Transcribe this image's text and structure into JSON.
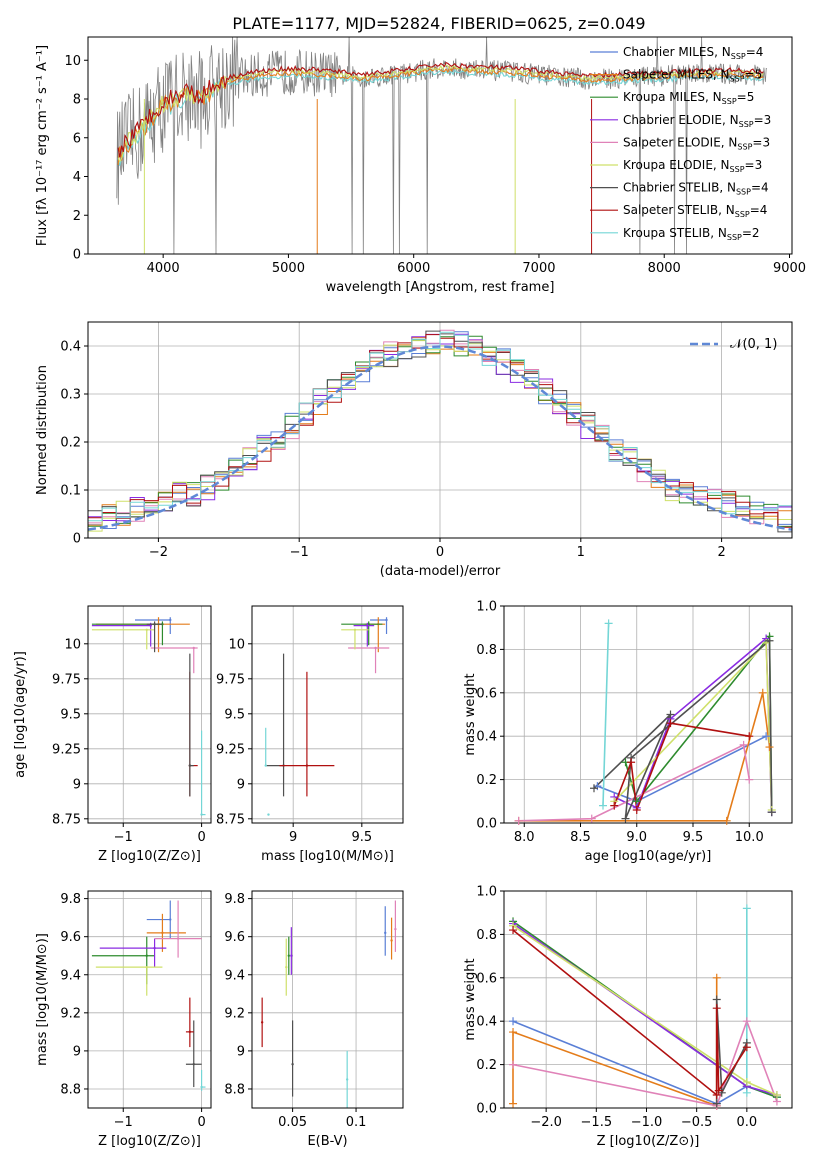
{
  "title": "PLATE=1177, MJD=52824, FIBERID=0625, z=0.049",
  "colors": {
    "Chabrier MILES": "#5a7fd6",
    "Salpeter MILES": "#e47c1a",
    "Kroupa MILES": "#2e8b2e",
    "Chabrier ELODIE": "#8a2be2",
    "Salpeter ELODIE": "#e082b8",
    "Kroupa ELODIE": "#cfe06a",
    "Chabrier STELIB": "#505050",
    "Salpeter STELIB": "#b01010",
    "Kroupa STELIB": "#74d6d6",
    "spectrum": "#808080",
    "gauss": "#5f88d6"
  },
  "chart_data": [
    {
      "id": "spectrum",
      "type": "line",
      "xlabel": "wavelength [Angstrom, rest frame]",
      "ylabel": "Flux [fλ 10⁻¹⁷ erg cm⁻² s⁻¹ A⁻¹]",
      "xlim": [
        3400,
        9020
      ],
      "ylim": [
        0,
        11.2
      ],
      "xticks": [
        4000,
        5000,
        6000,
        7000,
        8000,
        9000
      ],
      "yticks": [
        0,
        2,
        4,
        6,
        8,
        10
      ],
      "continuum": {
        "x": [
          3600,
          3700,
          3800,
          3900,
          4000,
          4100,
          4200,
          4300,
          4400,
          4500,
          4700,
          5000,
          5300,
          5600,
          5900,
          6200,
          6500,
          6800,
          7100,
          7400,
          7700,
          8000,
          8300,
          8600,
          8800
        ],
        "y": [
          4.7,
          5.6,
          6.2,
          7.0,
          7.7,
          8.0,
          8.3,
          8.0,
          8.5,
          8.9,
          9.2,
          9.4,
          9.3,
          9.1,
          9.3,
          9.6,
          9.5,
          9.4,
          9.2,
          9.0,
          9.1,
          9.2,
          9.3,
          9.3,
          9.2
        ]
      },
      "legend": [
        {
          "label": "Chabrier MILES, N",
          "n": "4"
        },
        {
          "label": "Salpeter MILES, N",
          "n": "5"
        },
        {
          "label": "Kroupa MILES, N",
          "n": "5"
        },
        {
          "label": "Chabrier ELODIE, N",
          "n": "3"
        },
        {
          "label": "Salpeter ELODIE, N",
          "n": "3"
        },
        {
          "label": "Kroupa ELODIE, N",
          "n": "3"
        },
        {
          "label": "Chabrier STELIB, N",
          "n": "4"
        },
        {
          "label": "Salpeter STELIB, N",
          "n": "4"
        },
        {
          "label": "Kroupa STELIB, N",
          "n": "2"
        }
      ],
      "legend_sub": "SSP",
      "legend_placement": "right"
    },
    {
      "id": "residuals",
      "type": "line",
      "xlabel": "(data-model)/error",
      "ylabel": "Normed distribution",
      "xlim": [
        -2.5,
        2.5
      ],
      "ylim": [
        0,
        0.45
      ],
      "xticks": [
        -2,
        -1,
        0,
        1,
        2
      ],
      "yticks": [
        0.0,
        0.1,
        0.2,
        0.3,
        0.4
      ],
      "grid": true,
      "bin_width": 0.1,
      "legend": "𝒩(0, 1)",
      "legend_placement": "top-right"
    },
    {
      "id": "z_age",
      "type": "scatter",
      "xlabel": "Z [log10(Z/Z⊙)]",
      "ylabel": "age  [log10(age/yr)]",
      "xlim": [
        -1.45,
        0.12
      ],
      "ylim": [
        8.72,
        10.27
      ],
      "xticks": [
        -1,
        0
      ],
      "yticks": [
        8.75,
        9.0,
        9.25,
        9.5,
        9.75,
        10.0
      ],
      "grid": true,
      "points": [
        {
          "s": "Chabrier MILES",
          "x": -0.4,
          "y": 10.17,
          "xe": [
            0.45,
            0
          ],
          "ye": [
            0.1,
            0.02
          ]
        },
        {
          "s": "Salpeter MILES",
          "x": -0.55,
          "y": 10.14,
          "xe": [
            0.8,
            0.4
          ],
          "ye": [
            0.2,
            0.05
          ]
        },
        {
          "s": "Kroupa MILES",
          "x": -0.5,
          "y": 10.14,
          "xe": [
            0.9,
            0
          ],
          "ye": [
            0.15,
            0.02
          ]
        },
        {
          "s": "Chabrier ELODIE",
          "x": -0.65,
          "y": 10.13,
          "xe": [
            0.75,
            0
          ],
          "ye": [
            0.15,
            0.02
          ]
        },
        {
          "s": "Salpeter ELODIE",
          "x": -0.1,
          "y": 9.97,
          "xe": [
            0.55,
            0.05
          ],
          "ye": [
            0.18,
            0.0
          ]
        },
        {
          "s": "Kroupa ELODIE",
          "x": -0.7,
          "y": 10.1,
          "xe": [
            0.7,
            0.1
          ],
          "ye": [
            0.14,
            0.0
          ]
        },
        {
          "s": "Chabrier STELIB",
          "x": -0.6,
          "y": 10.14,
          "xe": [
            0.1,
            0.1
          ],
          "ye": [
            0.2,
            0.02
          ]
        },
        {
          "s": "Salpeter STELIB",
          "x": -0.15,
          "y": 9.13,
          "xe": [
            0,
            0.1
          ],
          "ye": [
            0.22,
            0.67
          ]
        },
        {
          "s": "Chabrier STELIB",
          "x": -0.15,
          "y": 9.13,
          "xe": [
            0,
            0.05
          ],
          "ye": [
            0.22,
            0.8
          ]
        },
        {
          "s": "Kroupa STELIB",
          "x": 0.0,
          "y": 8.78,
          "xe": [
            0,
            0.05
          ],
          "ye": [
            0.0,
            0.6
          ]
        }
      ]
    },
    {
      "id": "mass_age",
      "type": "scatter",
      "xlabel": "mass [log10(M/M⊙)]",
      "ylabel": "",
      "xlim": [
        8.7,
        9.8
      ],
      "ylim": [
        8.72,
        10.27
      ],
      "xticks": [
        9.0,
        9.5
      ],
      "yticks": [
        8.75,
        9.0,
        9.25,
        9.5,
        9.75,
        10.0
      ],
      "grid": true,
      "points": [
        {
          "s": "Chabrier MILES",
          "x": 9.68,
          "y": 10.17,
          "xe": [
            0.12,
            0.0
          ],
          "ye": [
            0.1,
            0.02
          ]
        },
        {
          "s": "Salpeter MILES",
          "x": 9.62,
          "y": 10.14,
          "xe": [
            0.1,
            0.05
          ],
          "ye": [
            0.2,
            0.05
          ]
        },
        {
          "s": "Kroupa MILES",
          "x": 9.55,
          "y": 10.14,
          "xe": [
            0.2,
            0.1
          ],
          "ye": [
            0.15,
            0.02
          ]
        },
        {
          "s": "Chabrier ELODIE",
          "x": 9.54,
          "y": 10.13,
          "xe": [
            0.1,
            0.05
          ],
          "ye": [
            0.15,
            0.02
          ]
        },
        {
          "s": "Salpeter ELODIE",
          "x": 9.6,
          "y": 9.97,
          "xe": [
            0.2,
            0.1
          ],
          "ye": [
            0.18,
            0.0
          ]
        },
        {
          "s": "Kroupa ELODIE",
          "x": 9.45,
          "y": 10.1,
          "xe": [
            0.1,
            0.1
          ],
          "ye": [
            0.14,
            0.0
          ]
        },
        {
          "s": "Chabrier STELIB",
          "x": 8.93,
          "y": 9.13,
          "xe": [
            0.13,
            0.0
          ],
          "ye": [
            0.22,
            0.8
          ]
        },
        {
          "s": "Salpeter STELIB",
          "x": 9.1,
          "y": 9.13,
          "xe": [
            0.2,
            0.2
          ],
          "ye": [
            0.22,
            0.67
          ]
        },
        {
          "s": "Kroupa STELIB",
          "x": 8.82,
          "y": 8.78,
          "xe": [
            0.0,
            0.0
          ],
          "ye": [
            0.0,
            0.0
          ]
        },
        {
          "s": "Kroupa STELIB",
          "x": 8.8,
          "y": 9.13,
          "xe": [
            0.0,
            0.0
          ],
          "ye": [
            0.0,
            0.27
          ]
        }
      ]
    },
    {
      "id": "age_weight",
      "type": "line",
      "xlabel": "age  [log10(age/yr)]",
      "ylabel": "mass weight",
      "xlim": [
        7.82,
        10.38
      ],
      "ylim": [
        0,
        1.0
      ],
      "xticks": [
        8.0,
        8.5,
        9.0,
        9.5,
        10.0
      ],
      "yticks": [
        0.0,
        0.2,
        0.4,
        0.6,
        0.8,
        1.0
      ],
      "grid": true,
      "series": [
        {
          "s": "Chabrier MILES",
          "x": [
            8.65,
            9.0,
            10.15
          ],
          "y": [
            0.17,
            0.1,
            0.4
          ]
        },
        {
          "s": "Salpeter MILES",
          "x": [
            7.95,
            9.8,
            10.12,
            10.18
          ],
          "y": [
            0.01,
            0.01,
            0.6,
            0.35
          ]
        },
        {
          "s": "Kroupa MILES",
          "x": [
            8.9,
            9.0,
            10.18,
            10.2
          ],
          "y": [
            0.28,
            0.1,
            0.86,
            0.05
          ]
        },
        {
          "s": "Chabrier ELODIE",
          "x": [
            8.8,
            9.0,
            9.3,
            10.15,
            10.2
          ],
          "y": [
            0.12,
            0.07,
            0.48,
            0.85,
            0.05
          ]
        },
        {
          "s": "Salpeter ELODIE",
          "x": [
            7.95,
            8.6,
            9.95,
            10.0
          ],
          "y": [
            0.01,
            0.02,
            0.36,
            0.2
          ]
        },
        {
          "s": "Kroupa ELODIE",
          "x": [
            8.8,
            10.15,
            10.2
          ],
          "y": [
            0.1,
            0.83,
            0.06
          ]
        },
        {
          "s": "Chabrier STELIB",
          "x": [
            8.62,
            9.3,
            8.9,
            8.95,
            10.18,
            10.2
          ],
          "y": [
            0.16,
            0.5,
            0.02,
            0.3,
            0.84,
            0.05
          ]
        },
        {
          "s": "Salpeter STELIB",
          "x": [
            8.8,
            8.95,
            9.0,
            9.3,
            10.0
          ],
          "y": [
            0.08,
            0.28,
            0.06,
            0.46,
            0.4
          ]
        },
        {
          "s": "Kroupa STELIB",
          "x": [
            8.7,
            8.75
          ],
          "y": [
            0.08,
            0.92
          ]
        }
      ]
    },
    {
      "id": "z_mass",
      "type": "scatter",
      "xlabel": "Z [log10(Z/Z⊙)]",
      "ylabel": "mass [log10(M/M⊙)]",
      "xlim": [
        -1.45,
        0.12
      ],
      "ylim": [
        8.7,
        9.84
      ],
      "xticks": [
        -1,
        0
      ],
      "yticks": [
        8.8,
        9.0,
        9.2,
        9.4,
        9.6,
        9.8
      ],
      "grid": true,
      "points": [
        {
          "s": "Chabrier MILES",
          "x": -0.4,
          "y": 9.69,
          "xe": [
            0.3,
            0.0
          ],
          "ye": [
            0.1,
            0.1
          ]
        },
        {
          "s": "Salpeter MILES",
          "x": -0.5,
          "y": 9.62,
          "xe": [
            0.2,
            0.3
          ],
          "ye": [
            0.1,
            0.1
          ]
        },
        {
          "s": "Kroupa MILES",
          "x": -0.7,
          "y": 9.5,
          "xe": [
            0.7,
            0.1
          ],
          "ye": [
            0.15,
            0.1
          ]
        },
        {
          "s": "Chabrier ELODIE",
          "x": -0.6,
          "y": 9.54,
          "xe": [
            0.7,
            0.15
          ],
          "ye": [
            0.1,
            0.05
          ]
        },
        {
          "s": "Salpeter ELODIE",
          "x": -0.3,
          "y": 9.59,
          "xe": [
            0.3,
            0.3
          ],
          "ye": [
            0.1,
            0.2
          ]
        },
        {
          "s": "Kroupa ELODIE",
          "x": -0.7,
          "y": 9.44,
          "xe": [
            0.65,
            0.2
          ],
          "ye": [
            0.15,
            0.0
          ]
        },
        {
          "s": "Chabrier STELIB",
          "x": -0.1,
          "y": 8.93,
          "xe": [
            0.1,
            0.1
          ],
          "ye": [
            0.12,
            0.23
          ]
        },
        {
          "s": "Salpeter STELIB",
          "x": -0.15,
          "y": 9.1,
          "xe": [
            0.05,
            0.05
          ],
          "ye": [
            0.08,
            0.18
          ]
        },
        {
          "s": "Kroupa STELIB",
          "x": 0.0,
          "y": 8.81,
          "xe": [
            0.0,
            0.05
          ],
          "ye": [
            0.02,
            0.09
          ]
        }
      ]
    },
    {
      "id": "ebv_mass",
      "type": "scatter",
      "xlabel": "E(B-V)",
      "ylabel": "",
      "xlim": [
        0.018,
        0.137
      ],
      "ylim": [
        8.7,
        9.84
      ],
      "xticks": [
        0.05,
        0.1
      ],
      "yticks": [
        8.8,
        9.0,
        9.2,
        9.4,
        9.6,
        9.8
      ],
      "grid": true,
      "points": [
        {
          "s": "Chabrier MILES",
          "x": 0.123,
          "y": 9.62,
          "ye": [
            0.12,
            0.14
          ]
        },
        {
          "s": "Salpeter MILES",
          "x": 0.128,
          "y": 9.58,
          "ye": [
            0.1,
            0.12
          ]
        },
        {
          "s": "Kroupa MILES",
          "x": 0.047,
          "y": 9.5,
          "ye": [
            0.1,
            0.1
          ]
        },
        {
          "s": "Chabrier ELODIE",
          "x": 0.049,
          "y": 9.5,
          "ye": [
            0.1,
            0.15
          ]
        },
        {
          "s": "Salpeter ELODIE",
          "x": 0.131,
          "y": 9.64,
          "ye": [
            0.12,
            0.15
          ]
        },
        {
          "s": "Kroupa ELODIE",
          "x": 0.045,
          "y": 9.44,
          "ye": [
            0.15,
            0.15
          ]
        },
        {
          "s": "Chabrier STELIB",
          "x": 0.05,
          "y": 8.93,
          "ye": [
            0.17,
            0.23
          ]
        },
        {
          "s": "Salpeter STELIB",
          "x": 0.026,
          "y": 9.15,
          "ye": [
            0.13,
            0.13
          ]
        },
        {
          "s": "Kroupa STELIB",
          "x": 0.093,
          "y": 8.85,
          "ye": [
            0.15,
            0.15
          ]
        }
      ]
    },
    {
      "id": "z_weight",
      "type": "line",
      "xlabel": "Z [log10(Z/Z⊙)]",
      "ylabel": "mass weight",
      "xlim": [
        -2.42,
        0.45
      ],
      "ylim": [
        0,
        1.0
      ],
      "xticks": [
        -2.0,
        -1.5,
        -1.0,
        -0.5,
        0.0
      ],
      "yticks": [
        0.0,
        0.2,
        0.4,
        0.6,
        0.8,
        1.0
      ],
      "grid": true,
      "series": [
        {
          "s": "Chabrier MILES",
          "x": [
            -2.33,
            -0.3,
            0.0,
            0.3
          ],
          "y": [
            0.4,
            0.02,
            0.1,
            0.05
          ]
        },
        {
          "s": "Salpeter MILES",
          "x": [
            -2.33,
            -2.33,
            -0.3,
            -0.3
          ],
          "y": [
            0.02,
            0.35,
            0.01,
            0.6
          ]
        },
        {
          "s": "Kroupa MILES",
          "x": [
            -2.33,
            0.0,
            0.3
          ],
          "y": [
            0.86,
            0.1,
            0.05
          ]
        },
        {
          "s": "Chabrier ELODIE",
          "x": [
            -2.33,
            0.0,
            0.3
          ],
          "y": [
            0.85,
            0.1,
            0.06
          ]
        },
        {
          "s": "Salpeter ELODIE",
          "x": [
            -2.33,
            -0.3,
            0.0,
            0.3
          ],
          "y": [
            0.2,
            0.01,
            0.4,
            0.03
          ]
        },
        {
          "s": "Kroupa ELODIE",
          "x": [
            -2.33,
            0.0,
            0.3
          ],
          "y": [
            0.84,
            0.12,
            0.06
          ]
        },
        {
          "s": "Chabrier STELIB",
          "x": [
            -0.3,
            -0.3,
            -0.25,
            0.0
          ],
          "y": [
            0.02,
            0.5,
            0.07,
            0.3
          ]
        },
        {
          "s": "Salpeter STELIB",
          "x": [
            -2.33,
            -0.3,
            -0.3,
            -0.28,
            0.0
          ],
          "y": [
            0.82,
            0.06,
            0.46,
            0.08,
            0.28
          ]
        },
        {
          "s": "Kroupa STELIB",
          "x": [
            0.0,
            0.0
          ],
          "y": [
            0.07,
            0.92
          ]
        }
      ]
    }
  ]
}
